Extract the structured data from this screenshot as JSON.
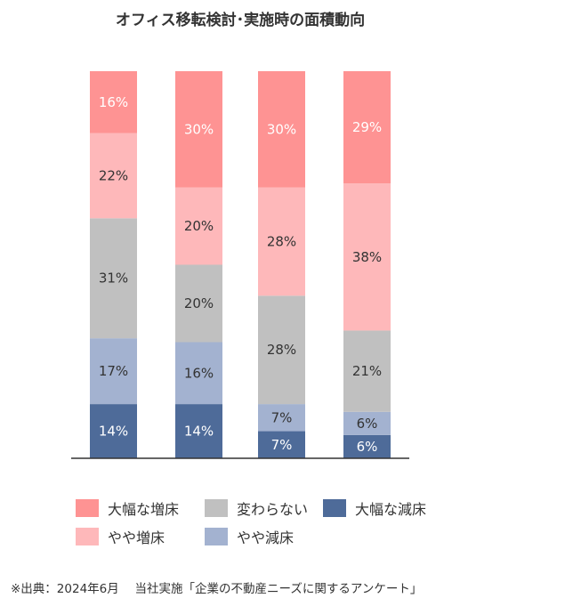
{
  "title": "オフィス移転検討･実施時の面積動向",
  "chart_data": {
    "type": "bar",
    "stacked": true,
    "percent_stacked": true,
    "categories": [
      "",
      "",
      "",
      ""
    ],
    "series": [
      {
        "name": "大幅な減床",
        "color": "#4e6b99",
        "text_color": "#ffffff",
        "values": [
          14,
          14,
          7,
          6
        ]
      },
      {
        "name": "やや減床",
        "color": "#a3b2d0",
        "text_color": "#333333",
        "values": [
          17,
          16,
          7,
          6
        ]
      },
      {
        "name": "変わらない",
        "color": "#c0c0c0",
        "text_color": "#333333",
        "values": [
          31,
          20,
          28,
          21
        ]
      },
      {
        "name": "やや増床",
        "color": "#feb8ba",
        "text_color": "#333333",
        "values": [
          22,
          20,
          28,
          38
        ]
      },
      {
        "name": "大幅な増床",
        "color": "#fe9393",
        "text_color": "#ffffff",
        "values": [
          16,
          30,
          30,
          29
        ]
      }
    ],
    "data_labels": [
      [
        "14%",
        "14%",
        "7%",
        "6%"
      ],
      [
        "17%",
        "16%",
        "7%",
        "6%"
      ],
      [
        "31%",
        "20%",
        "28%",
        "21%"
      ],
      [
        "22%",
        "20%",
        "28%",
        "38%"
      ],
      [
        "16%",
        "30%",
        "30%",
        "29%"
      ]
    ],
    "ylim": [
      0,
      100
    ],
    "grid": false,
    "legend_position": "bottom"
  },
  "legend": [
    {
      "label": "大幅な増床",
      "color": "#fe9393"
    },
    {
      "label": "変わらない",
      "color": "#c0c0c0"
    },
    {
      "label": "大幅な減床",
      "color": "#4e6b99"
    },
    {
      "label": "やや増床",
      "color": "#feb8ba"
    },
    {
      "label": "やや減床",
      "color": "#a3b2d0"
    }
  ],
  "source_note": "※出典：2024年6月　 当社実施「企業の不動産ニーズに関するアンケート」"
}
